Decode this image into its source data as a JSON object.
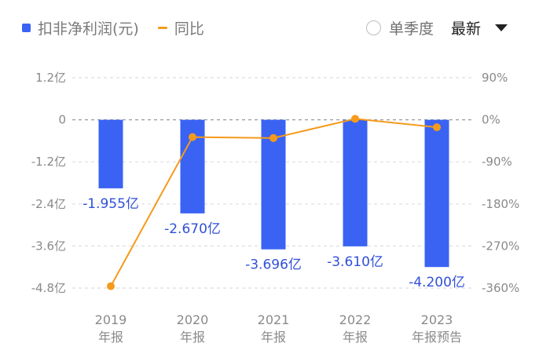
{
  "legend": {
    "bar_label": "扣非净利润(元)",
    "line_label": "同比"
  },
  "controls": {
    "single_quarter_label": "单季度",
    "single_quarter_checked": false,
    "sort_label": "最新"
  },
  "colors": {
    "bar": "#3a63f3",
    "line": "#f59a1b",
    "value_label": "#3050d8",
    "axis_text": "#8a8a8a"
  },
  "axes": {
    "left_ticks": [
      "1.2亿",
      "0",
      "-1.2亿",
      "-2.4亿",
      "-3.6亿",
      "-4.8亿"
    ],
    "right_ticks": [
      "90%",
      "0%",
      "-90%",
      "-180%",
      "-270%",
      "-360%"
    ],
    "x_ticks": [
      {
        "year": "2019",
        "type": "年报"
      },
      {
        "year": "2020",
        "type": "年报"
      },
      {
        "year": "2021",
        "type": "年报"
      },
      {
        "year": "2022",
        "type": "年报"
      },
      {
        "year": "2023",
        "type": "年报预告"
      }
    ]
  },
  "bar_value_labels": [
    "-1.955亿",
    "-2.670亿",
    "-3.696亿",
    "-3.610亿",
    "-4.200亿"
  ],
  "chart_data": {
    "type": "bar",
    "title": "",
    "categories": [
      "2019年报",
      "2020年报",
      "2021年报",
      "2022年报",
      "2023年报预告"
    ],
    "series": [
      {
        "name": "扣非净利润(元)",
        "type": "bar",
        "axis": "left",
        "unit": "亿",
        "values": [
          -1.955,
          -2.67,
          -3.696,
          -3.61,
          -4.2
        ]
      },
      {
        "name": "同比",
        "type": "line",
        "axis": "right",
        "unit": "%",
        "values": [
          -356,
          -37,
          -39,
          2,
          -16
        ]
      }
    ],
    "xlabel": "",
    "ylabel_left": "亿",
    "ylabel_right": "%",
    "ylim_left": [
      -4.8,
      1.2
    ],
    "ylim_right": [
      -360,
      90
    ],
    "grid": true,
    "legend_position": "top-left"
  }
}
